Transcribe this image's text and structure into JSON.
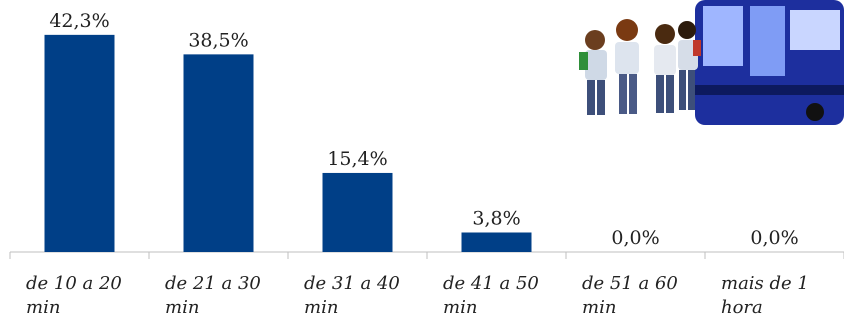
{
  "chart_data": {
    "type": "bar",
    "categories": [
      "de 10 a 20 min",
      "de 21 a 30 min",
      "de 31 a 40 min",
      "de 41 a 50 min",
      "de 51 a 60 min",
      "mais de 1 hora"
    ],
    "values": [
      42.3,
      38.5,
      15.4,
      3.8,
      0.0,
      0.0
    ],
    "data_labels": [
      "42,3%",
      "38,5%",
      "15,4%",
      "3,8%",
      "0,0%",
      "0,0%"
    ],
    "ylim": [
      0,
      45
    ],
    "grid": false,
    "legend": "none",
    "bar_color": "#003f87"
  },
  "illustration": {
    "name": "students-boarding-bus"
  }
}
